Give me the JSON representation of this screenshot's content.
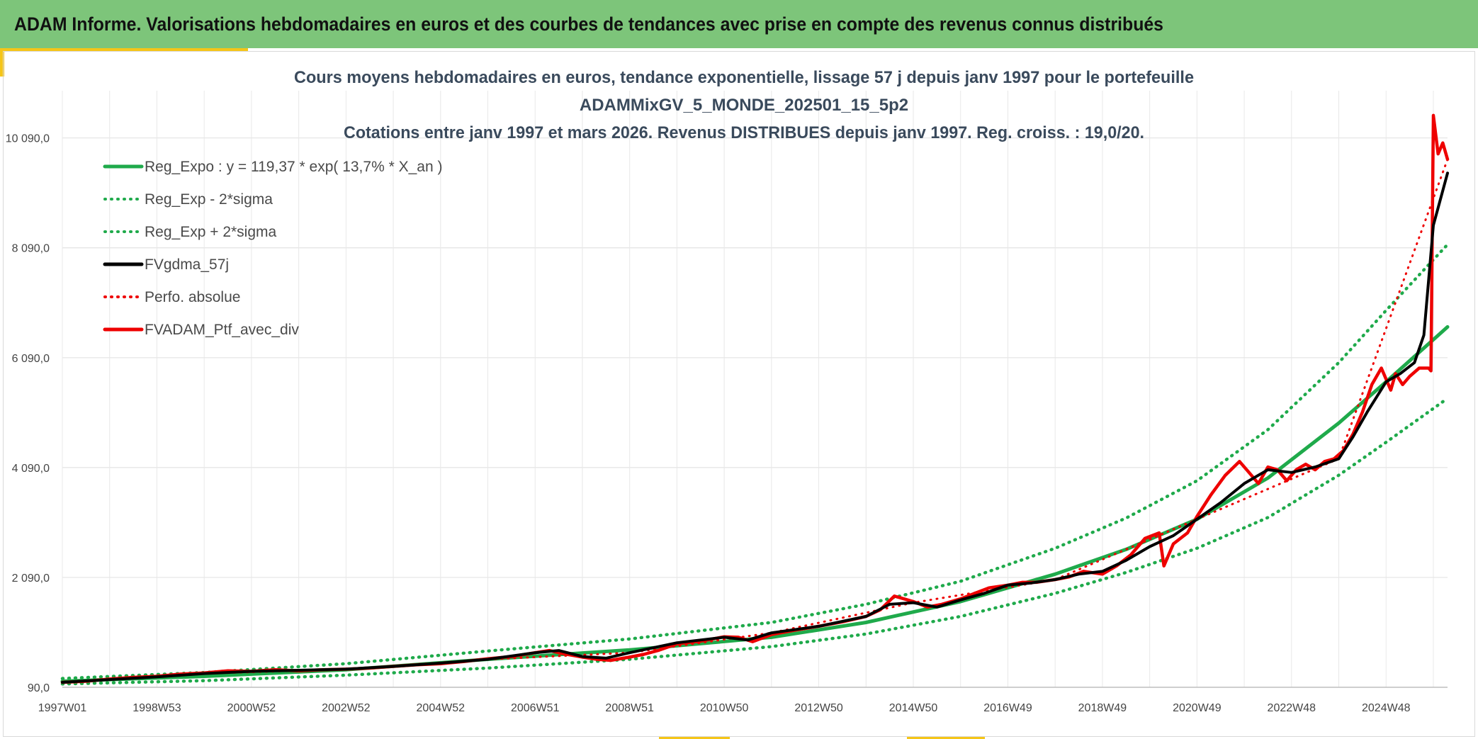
{
  "banner": {
    "title": "ADAM Informe. Valorisations hebdomadaires en euros et des courbes de tendances avec prise en compte des revenus connus distribués"
  },
  "colors": {
    "banner_bg": "#7dc57a",
    "accent_gold": "#f5c518",
    "reg_green": "#1faa4b",
    "fv_black": "#000000",
    "ptf_red": "#ee0000"
  },
  "chart_data": {
    "type": "line",
    "title_lines": [
      "Cours moyens hebdomadaires en euros, tendance exponentielle, lissage 57 j depuis janv 1997 pour le portefeuille",
      "ADAMMixGV_5_MONDE_202501_15_5p2",
      "Cotations entre janv 1997 et mars 2026. Revenus DISTRIBUES depuis janv 1997. Reg. croiss. : 19,0/20."
    ],
    "x_range": [
      "1997-01",
      "2026-03"
    ],
    "x_tick_labels": [
      "1997W01",
      "1998W53",
      "2000W52",
      "2002W52",
      "2004W52",
      "2006W51",
      "2008W51",
      "2010W50",
      "2012W50",
      "2014W50",
      "2016W49",
      "2018W49",
      "2020W49",
      "2022W48",
      "2024W48"
    ],
    "x_tick_years": [
      1997.0,
      1999.0,
      2001.0,
      2003.0,
      2005.0,
      2007.0,
      2009.0,
      2011.0,
      2013.0,
      2015.0,
      2017.0,
      2019.0,
      2021.0,
      2023.0,
      2025.0
    ],
    "y_ticks": [
      90,
      2090,
      4090,
      6090,
      8090,
      10090
    ],
    "y_tick_labels": [
      "90,0",
      "2 090,0",
      "4 090,0",
      "6 090,0",
      "8 090,0",
      "10 090,0"
    ],
    "ylim": [
      90,
      10950
    ],
    "grid": true,
    "legend_position": "top-left",
    "series": [
      {
        "name": "Reg_Expo : y = 119,37 * exp( 13,7% *  X_an )",
        "style": "solid",
        "color": "#1faa4b",
        "x": [
          1997.0,
          2000.0,
          2003.0,
          2006.0,
          2009.0,
          2012.0,
          2014.0,
          2016.0,
          2018.0,
          2019.5,
          2021.0,
          2022.5,
          2024.0,
          2025.0,
          2026.3
        ],
        "y": [
          200,
          290,
          410,
          600,
          770,
          1000,
          1270,
          1650,
          2150,
          2600,
          3150,
          3900,
          4900,
          5650,
          6650
        ]
      },
      {
        "name": "Reg_Exp - 2*sigma",
        "style": "dotted",
        "color": "#1faa4b",
        "x": [
          1997.0,
          2000.0,
          2003.0,
          2006.0,
          2009.0,
          2012.0,
          2014.0,
          2016.0,
          2018.0,
          2019.5,
          2021.0,
          2022.5,
          2024.0,
          2025.0,
          2026.3
        ],
        "y": [
          150,
          210,
          310,
          440,
          600,
          830,
          1060,
          1380,
          1800,
          2180,
          2620,
          3180,
          3950,
          4550,
          5350
        ]
      },
      {
        "name": "Reg_Exp + 2*sigma",
        "style": "dotted",
        "color": "#1faa4b",
        "x": [
          1997.0,
          2000.0,
          2003.0,
          2006.0,
          2009.0,
          2012.0,
          2014.0,
          2016.0,
          2018.0,
          2019.5,
          2021.0,
          2022.5,
          2024.0,
          2025.0,
          2026.3
        ],
        "y": [
          250,
          360,
          520,
          750,
          970,
          1270,
          1600,
          2020,
          2620,
          3170,
          3850,
          4780,
          6000,
          6950,
          8150
        ]
      },
      {
        "name": "FVgdma_57j",
        "style": "solid",
        "color": "#000000",
        "x": [
          1997.0,
          1998.0,
          1999.0,
          2000.0,
          2001.0,
          2002.0,
          2003.0,
          2004.0,
          2005.0,
          2006.0,
          2007.0,
          2007.5,
          2008.0,
          2008.5,
          2009.0,
          2010.0,
          2011.0,
          2011.5,
          2012.0,
          2013.0,
          2014.0,
          2014.5,
          2015.0,
          2015.5,
          2016.0,
          2016.5,
          2017.0,
          2017.5,
          2018.0,
          2018.5,
          2019.0,
          2019.5,
          2020.0,
          2020.5,
          2021.0,
          2021.5,
          2022.0,
          2022.5,
          2023.0,
          2023.5,
          2024.0,
          2024.3,
          2024.6,
          2025.0,
          2025.3,
          2025.6,
          2025.8,
          2026.0,
          2026.3
        ],
        "y": [
          180,
          230,
          280,
          340,
          380,
          400,
          420,
          470,
          530,
          600,
          720,
          760,
          650,
          620,
          720,
          900,
          1000,
          950,
          1080,
          1200,
          1380,
          1600,
          1630,
          1550,
          1680,
          1800,
          1950,
          1990,
          2050,
          2150,
          2200,
          2400,
          2650,
          2850,
          3150,
          3450,
          3800,
          4050,
          4000,
          4100,
          4250,
          4650,
          5100,
          5650,
          5800,
          6000,
          6500,
          8500,
          9450
        ]
      },
      {
        "name": "Perfo. absolue",
        "style": "dotted",
        "color": "#ee0000",
        "x": [
          1997.0,
          2000.0,
          2003.0,
          2006.0,
          2009.0,
          2012.0,
          2015.0,
          2018.0,
          2021.0,
          2024.0,
          2026.3
        ],
        "y": [
          180,
          340,
          420,
          600,
          720,
          1080,
          1630,
          2050,
          3150,
          4250,
          9700
        ]
      },
      {
        "name": "FVADAM_Ptf_avec_div",
        "style": "solid",
        "color": "#ee0000",
        "x": [
          1997.0,
          1997.5,
          1998.0,
          1998.5,
          1999.0,
          1999.5,
          2000.0,
          2000.5,
          2001.0,
          2001.5,
          2002.0,
          2002.5,
          2003.0,
          2003.5,
          2004.0,
          2004.5,
          2005.0,
          2005.5,
          2006.0,
          2006.5,
          2007.0,
          2007.3,
          2007.6,
          2008.0,
          2008.3,
          2008.6,
          2009.0,
          2009.3,
          2009.6,
          2010.0,
          2010.5,
          2011.0,
          2011.3,
          2011.6,
          2012.0,
          2012.5,
          2013.0,
          2013.5,
          2014.0,
          2014.3,
          2014.6,
          2015.0,
          2015.3,
          2015.6,
          2016.0,
          2016.3,
          2016.6,
          2017.0,
          2017.3,
          2017.6,
          2018.0,
          2018.3,
          2018.6,
          2019.0,
          2019.3,
          2019.6,
          2019.9,
          2020.2,
          2020.3,
          2020.5,
          2020.8,
          2021.0,
          2021.3,
          2021.6,
          2021.9,
          2022.1,
          2022.3,
          2022.5,
          2022.7,
          2022.9,
          2023.1,
          2023.3,
          2023.5,
          2023.7,
          2023.9,
          2024.1,
          2024.3,
          2024.5,
          2024.7,
          2024.9,
          2025.1,
          2025.2,
          2025.35,
          2025.5,
          2025.7,
          2025.9,
          2025.95,
          2026.0,
          2026.1,
          2026.2,
          2026.3
        ],
        "y": [
          180,
          200,
          240,
          270,
          290,
          330,
          350,
          390,
          380,
          410,
          390,
          410,
          420,
          440,
          470,
          500,
          520,
          560,
          610,
          650,
          720,
          760,
          700,
          640,
          600,
          580,
          640,
          690,
          760,
          880,
          930,
          1010,
          1000,
          920,
          1050,
          1130,
          1200,
          1280,
          1380,
          1500,
          1750,
          1650,
          1550,
          1600,
          1700,
          1800,
          1900,
          1950,
          2000,
          2000,
          2050,
          2100,
          2200,
          2150,
          2300,
          2500,
          2800,
          2900,
          2300,
          2700,
          2900,
          3200,
          3600,
          3950,
          4200,
          4000,
          3800,
          4100,
          4050,
          3850,
          4050,
          4150,
          4050,
          4200,
          4250,
          4400,
          4700,
          5100,
          5600,
          5900,
          5500,
          5800,
          5600,
          5750,
          5900,
          5900,
          5850,
          10500,
          9800,
          10000,
          9700
        ]
      }
    ]
  }
}
